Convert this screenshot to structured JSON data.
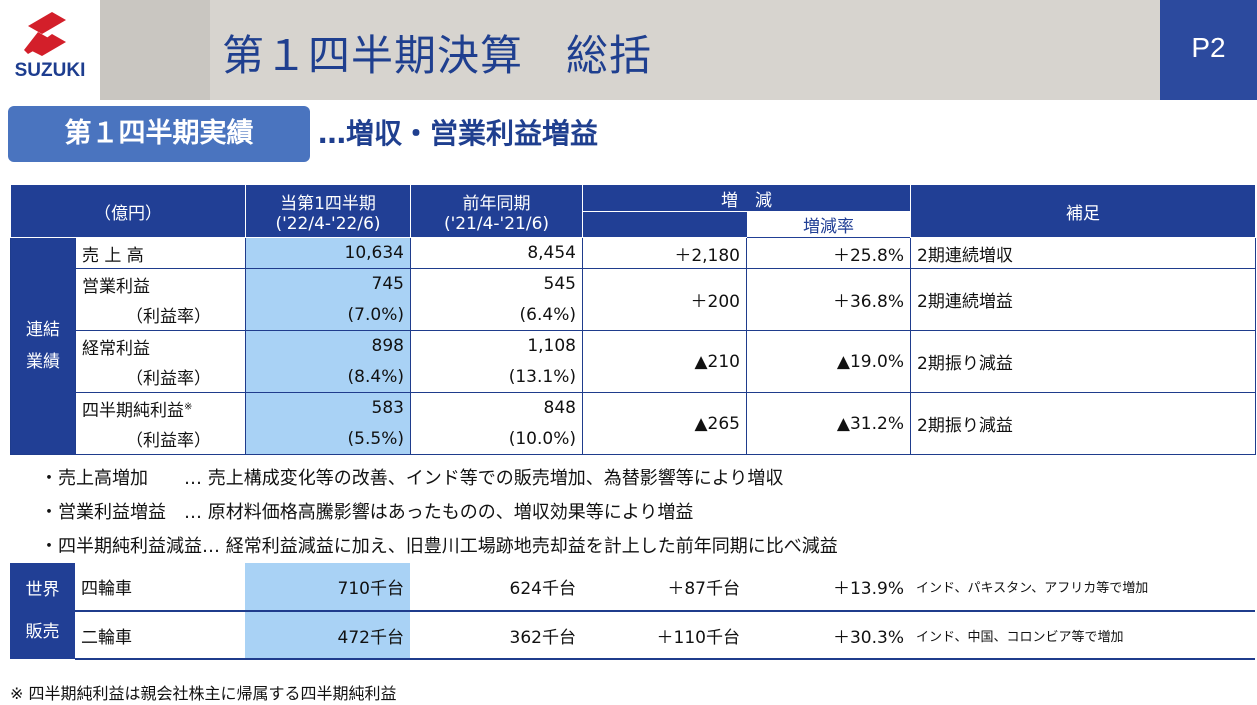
{
  "header": {
    "logo_text": "SUZUKI",
    "title": "第１四半期決算　総括",
    "page": "P2"
  },
  "section": {
    "tab": "第１四半期実績",
    "subtitle": "…増収・営業利益増益"
  },
  "table": {
    "unit": "（億円）",
    "col_current": "当第1四半期",
    "col_current_period": "('22/4-'22/6)",
    "col_prev": "前年同期",
    "col_prev_period": "('21/4-'21/6)",
    "col_change": "増　減",
    "col_change_rate": "増減率",
    "col_note": "補足",
    "group_label_1": "連結",
    "group_label_2": "業績",
    "rows": [
      {
        "label": "売 上 高",
        "current": "10,634",
        "prev": "8,454",
        "change": "＋2,180",
        "rate": "＋25.8%",
        "note": "2期連続増収"
      },
      {
        "label": "営業利益",
        "sub_label": "（利益率）",
        "current": "745",
        "current_sub": "(7.0%)",
        "prev": "545",
        "prev_sub": "(6.4%)",
        "change": "＋200",
        "rate": "＋36.8%",
        "note": "2期連続増益"
      },
      {
        "label": "経常利益",
        "sub_label": "（利益率）",
        "current": "898",
        "current_sub": "(8.4%)",
        "prev": "1,108",
        "prev_sub": "(13.1%)",
        "change": "▲210",
        "rate": "▲19.0%",
        "note": "2期振り減益"
      },
      {
        "label": "四半期純利益",
        "label_mark": "※",
        "sub_label": "（利益率）",
        "current": "583",
        "current_sub": "(5.5%)",
        "prev": "848",
        "prev_sub": "(10.0%)",
        "change": "▲265",
        "rate": "▲31.2%",
        "note": "2期振り減益"
      }
    ]
  },
  "notes": [
    "・売上高増加　　… 売上構成変化等の改善、インド等での販売増加、為替影響等により増収",
    "・営業利益増益　… 原材料価格高騰影響はあったものの、増収効果等により増益",
    "・四半期純利益減益… 経常利益減益に加え、旧豊川工場跡地売却益を計上した前年同期に比べ減益"
  ],
  "sales": {
    "group_label_1": "世界",
    "group_label_2": "販売",
    "rows": [
      {
        "label": "四輪車",
        "current": "710千台",
        "prev": "624千台",
        "change": "＋87千台",
        "rate": "＋13.9%",
        "note": "インド、パキスタン、アフリカ等で増加"
      },
      {
        "label": "二輪車",
        "current": "472千台",
        "prev": "362千台",
        "change": "＋110千台",
        "rate": "＋30.3%",
        "note": "インド、中国、コロンビア等で増加"
      }
    ]
  },
  "footnote": "※ 四半期純利益は親会社株主に帰属する四半期純利益"
}
